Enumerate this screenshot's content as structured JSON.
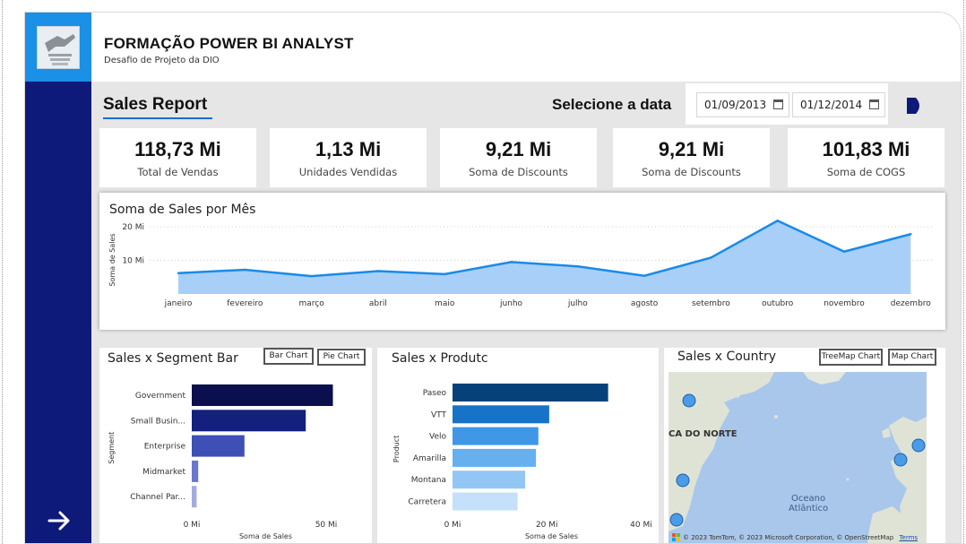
{
  "header": {
    "title": "FORMAÇÃO POWER BI ANALYST",
    "subtitle": "Desafio de Projeto da DIO"
  },
  "report": {
    "title": "Sales Report",
    "date_label": "Selecione a data",
    "date_start": "01/09/2013",
    "date_end": "01/12/2014"
  },
  "kpis": [
    {
      "value": "118,73 Mi",
      "label": "Total de Vendas"
    },
    {
      "value": "1,13 Mi",
      "label": "Unidades Vendidas"
    },
    {
      "value": "9,21 Mi",
      "label": "Soma de Discounts"
    },
    {
      "value": "9,21 Mi",
      "label": "Soma de Discounts"
    },
    {
      "value": "101,83 Mi",
      "label": "Soma de COGS"
    }
  ],
  "line_panel": {
    "title": "Soma de Sales por Mês"
  },
  "segment_panel": {
    "title": "Sales x Segment Bar",
    "btn_bar": "Bar Chart",
    "btn_pie": "Pie Chart"
  },
  "product_panel": {
    "title": "Sales x Produtc"
  },
  "country_panel": {
    "title": "Sales x Country",
    "btn_treemap": "TreeMap Chart",
    "btn_map": "Map Chart",
    "map_label_na": "CA DO NORTE",
    "map_label_ocean1": "Oceano",
    "map_label_ocean2": "Atlântico",
    "attribution": "© 2023 TomTom, © 2023 Microsoft Corporation, © OpenStreetMap",
    "terms": "Terms"
  },
  "colors": {
    "sidebar": "#0d1a7a",
    "logo_bg": "#1a90e6",
    "line_fill": "#a8cff7",
    "line_stroke": "#1a8ae8"
  },
  "chart_data": [
    {
      "type": "area",
      "title": "Soma de Sales por Mês",
      "xlabel": "",
      "ylabel": "Soma de Sales",
      "categories": [
        "janeiro",
        "fevereiro",
        "março",
        "abril",
        "maio",
        "junho",
        "julho",
        "agosto",
        "setembro",
        "outubro",
        "novembro",
        "dezembro"
      ],
      "values": [
        6.2,
        7.2,
        5.3,
        6.8,
        5.9,
        9.5,
        8.2,
        5.4,
        10.8,
        21.8,
        12.6,
        17.8
      ],
      "y_ticks": [
        "10 Mi",
        "20 Mi"
      ],
      "ylim": [
        0,
        25
      ],
      "grid": true
    },
    {
      "type": "bar",
      "orientation": "horizontal",
      "title": "Sales x Segment Bar",
      "xlabel": "Soma de Sales",
      "ylabel": "Segment",
      "categories": [
        "Government",
        "Small Busin...",
        "Enterprise",
        "Midmarket",
        "Channel Par..."
      ],
      "values": [
        52.5,
        42.4,
        19.6,
        2.4,
        1.8
      ],
      "colors": [
        "#0b0f4e",
        "#13207d",
        "#3e4fb5",
        "#6a77cc",
        "#a2abe0"
      ],
      "x_ticks": [
        "0 Mi",
        "50 Mi"
      ],
      "xlim": [
        0,
        55
      ]
    },
    {
      "type": "bar",
      "orientation": "horizontal",
      "title": "Sales x Produtc",
      "xlabel": "Soma de Sales",
      "ylabel": "Product",
      "categories": [
        "Paseo",
        "VTT",
        "Velo",
        "Amarilla",
        "Montana",
        "Carretera"
      ],
      "values": [
        33.0,
        20.5,
        18.2,
        17.7,
        15.4,
        13.8
      ],
      "colors": [
        "#07417a",
        "#1673c8",
        "#3f97e6",
        "#66b0f0",
        "#92c7f5",
        "#c5e0fa"
      ],
      "x_ticks": [
        "0 Mi",
        "20 Mi",
        "40 Mi"
      ],
      "xlim": [
        0,
        42
      ]
    }
  ]
}
